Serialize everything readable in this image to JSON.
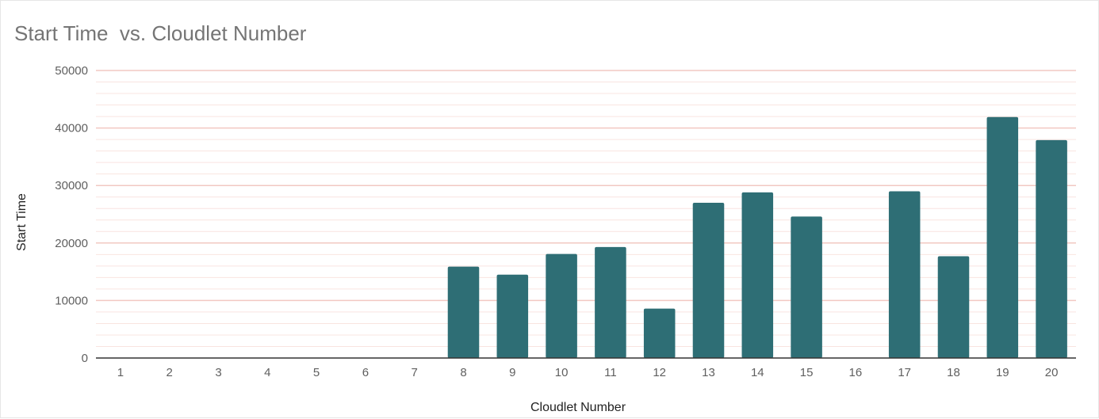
{
  "chart_data": {
    "type": "bar",
    "title": "Start Time  vs. Cloudlet Number",
    "xlabel": "Cloudlet Number",
    "ylabel": "Start Time",
    "categories": [
      "1",
      "2",
      "3",
      "4",
      "5",
      "6",
      "7",
      "8",
      "9",
      "10",
      "11",
      "12",
      "13",
      "14",
      "15",
      "16",
      "17",
      "18",
      "19",
      "20"
    ],
    "series": [
      {
        "values": [
          0,
          0,
          0,
          0,
          0,
          0,
          0,
          15900,
          14500,
          18100,
          19300,
          8600,
          27000,
          28800,
          24600,
          0,
          29000,
          17700,
          41900,
          37900
        ]
      }
    ],
    "ylim": [
      0,
      50000
    ],
    "yticks": [
      "0",
      "10000",
      "20000",
      "30000",
      "40000",
      "50000"
    ],
    "grid": true,
    "legend": "none",
    "colors": {
      "bar": "#2e6e75",
      "major_grid": "#f2c8c2",
      "minor_grid": "#f9e4e0",
      "axis": "#333333"
    }
  }
}
